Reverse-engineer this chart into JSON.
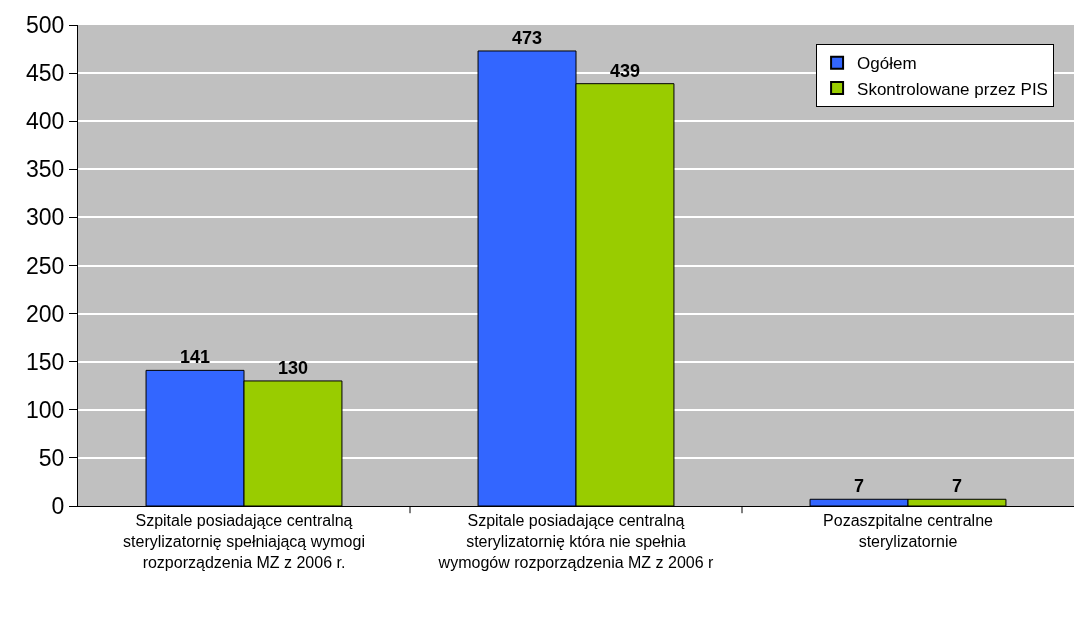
{
  "chart_data": {
    "type": "bar",
    "categories": [
      "Szpitale posiadające centralną sterylizatornię spełniającą wymogi rozporządzenia MZ z 2006 r.",
      "Szpitale posiadające centralną sterylizatornię która nie spełnia wymogów rozporządzenia MZ z 2006 r",
      "Pozaszpitalne centralne sterylizatornie"
    ],
    "series": [
      {
        "name": "Ogółem",
        "color": "#3366ff",
        "values": [
          141,
          473,
          7
        ]
      },
      {
        "name": "Skontrolowane przez PIS",
        "color": "#99cc00",
        "values": [
          130,
          439,
          7
        ]
      }
    ],
    "ylim": [
      0,
      500
    ],
    "yticks": [
      0,
      50,
      100,
      150,
      200,
      250,
      300,
      350,
      400,
      450,
      500
    ],
    "grid": "y",
    "legend": "top right",
    "data_labels": true
  }
}
